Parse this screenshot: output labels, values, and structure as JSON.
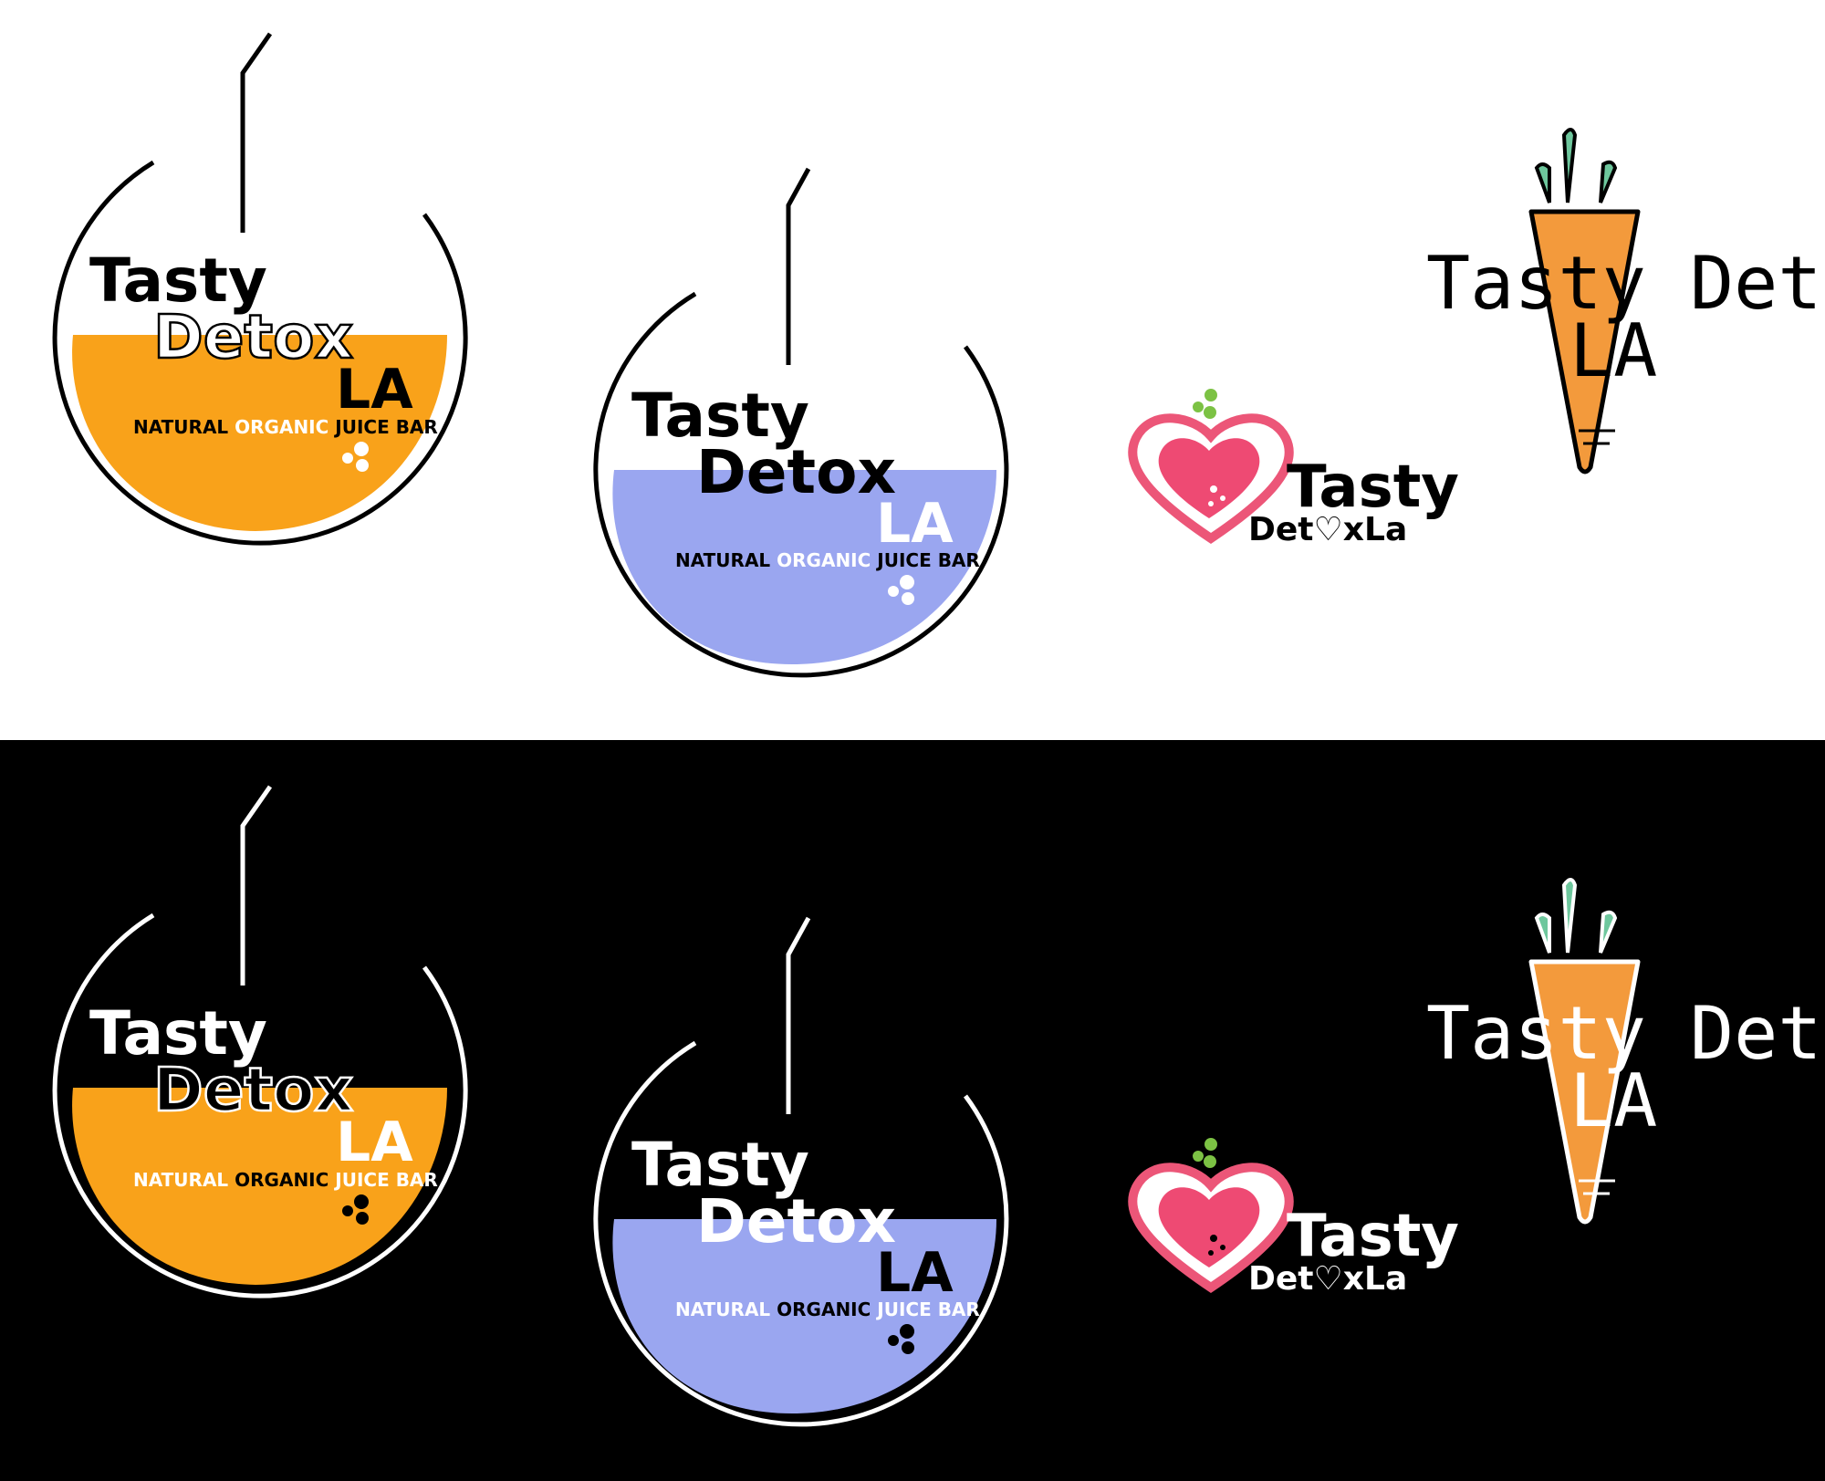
{
  "brand": {
    "line1": "Tasty",
    "line2": "Detox",
    "line3": "LA",
    "tagline": {
      "word1": "NATURAL",
      "word2": "ORGANIC",
      "word3": "JUICE BAR"
    },
    "heart_logo": {
      "word1": "Tasty",
      "word2": "Detox",
      "word3": "La",
      "detox_before_o": "Det",
      "detox_after_o": "x"
    },
    "carrot_logo": {
      "line1": "Tasty Detox",
      "line2": "LA"
    }
  },
  "colors": {
    "orange": "#f9a21a",
    "lavender": "#9aa6f0",
    "pink": "#ee4a73",
    "heart_outline": "#ec5678",
    "green": "#7cc244",
    "carrot": "#f39a3c",
    "leaf": "#6ec79d",
    "light_bg": "#ffffff",
    "dark_bg": "#000000"
  }
}
